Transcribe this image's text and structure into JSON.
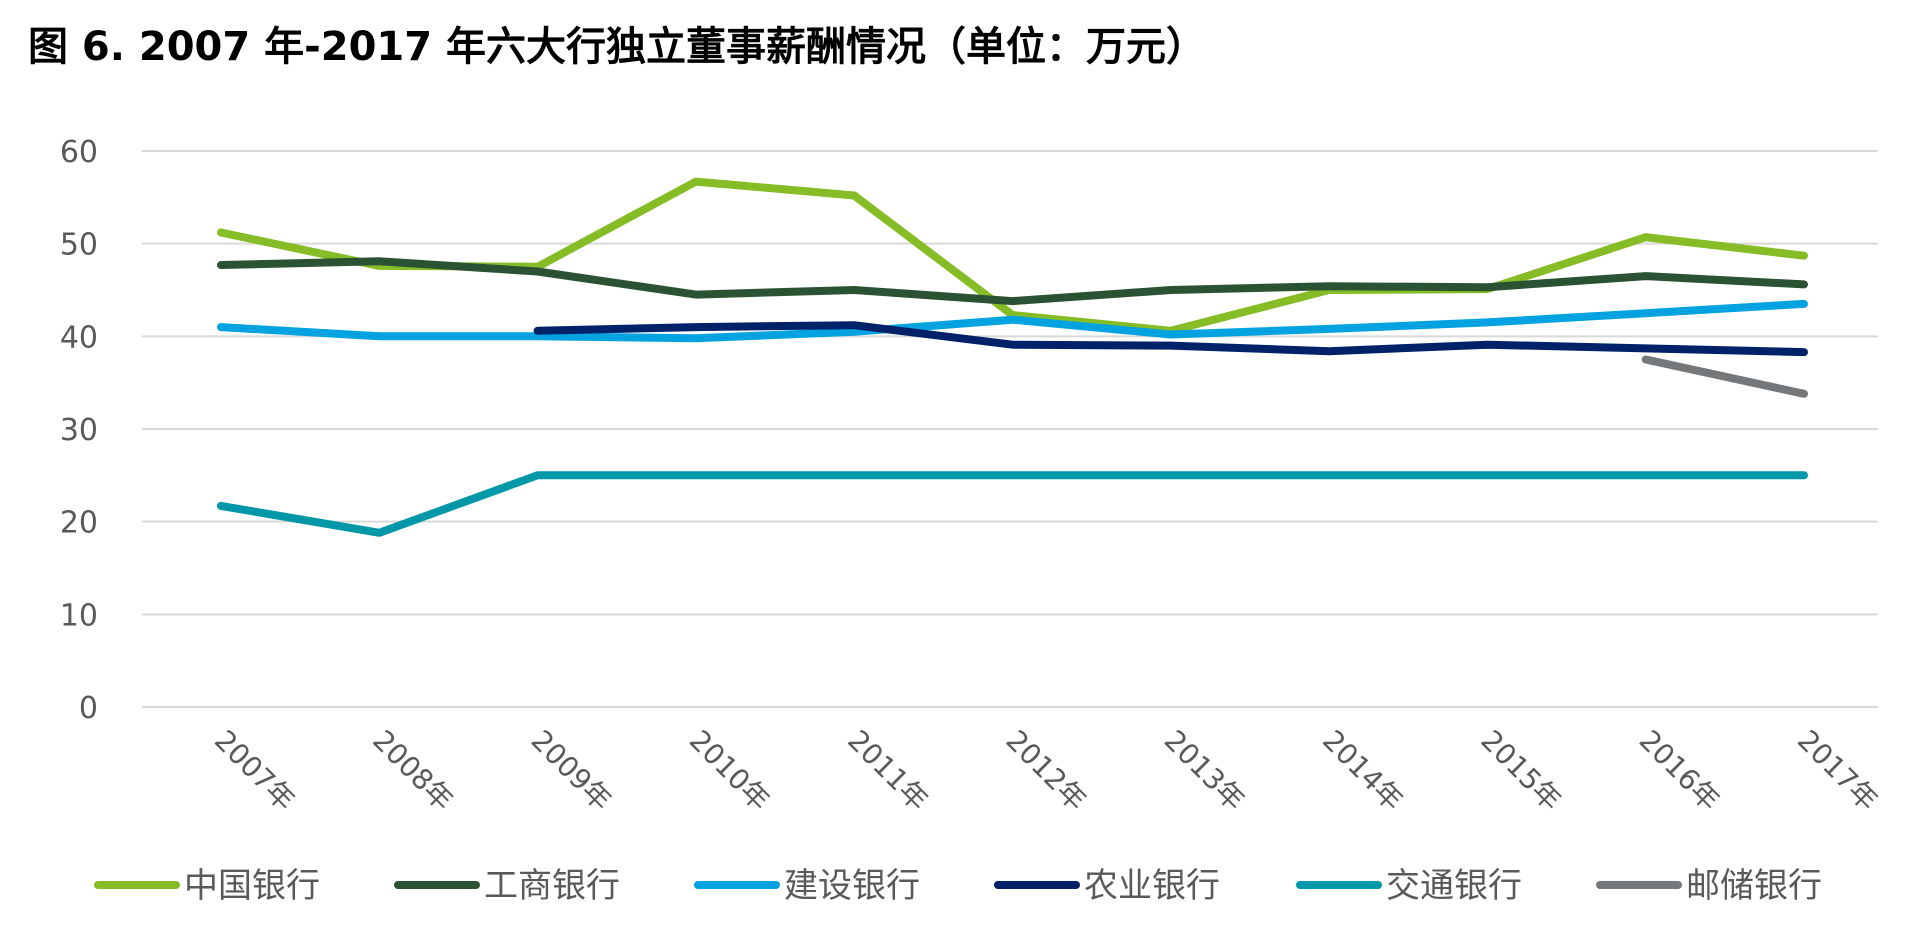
{
  "page": {
    "title": "图 6. 2007 年-2017 年六大行独立董事薪酬情况（单位：万元）"
  },
  "chart_data": {
    "type": "line",
    "title": "图 6. 2007 年-2017 年六大行独立董事薪酬情况（单位：万元）",
    "xlabel": "",
    "ylabel": "",
    "categories": [
      "2007年",
      "2008年",
      "2009年",
      "2010年",
      "2011年",
      "2012年",
      "2013年",
      "2014年",
      "2015年",
      "2016年",
      "2017年"
    ],
    "ylim": [
      0,
      60
    ],
    "yticks": [
      0,
      10,
      20,
      30,
      40,
      50,
      60
    ],
    "grid": "horizontal",
    "legend_position": "bottom",
    "series": [
      {
        "name": "中国银行",
        "color": "#86BC25",
        "values": [
          51.2,
          47.6,
          47.5,
          56.7,
          55.2,
          42.3,
          40.6,
          45.0,
          45.1,
          50.7,
          48.7
        ]
      },
      {
        "name": "工商银行",
        "color": "#2C5234",
        "values": [
          47.7,
          48.1,
          47.0,
          44.5,
          45.0,
          43.8,
          45.0,
          45.4,
          45.3,
          46.5,
          45.6
        ]
      },
      {
        "name": "建设银行",
        "color": "#00A3E0",
        "values": [
          41.0,
          40.0,
          40.0,
          39.8,
          40.5,
          41.8,
          40.2,
          40.8,
          41.5,
          42.5,
          43.5
        ]
      },
      {
        "name": "农业银行",
        "color": "#012169",
        "values": [
          null,
          null,
          40.6,
          41.0,
          41.2,
          39.1,
          39.0,
          38.4,
          39.1,
          38.7,
          38.3
        ]
      },
      {
        "name": "交通银行",
        "color": "#0097A9",
        "values": [
          21.7,
          18.8,
          25.0,
          25.0,
          25.0,
          25.0,
          25.0,
          25.0,
          25.0,
          25.0,
          25.0
        ]
      },
      {
        "name": "邮储银行",
        "color": "#75787B",
        "values": [
          null,
          null,
          null,
          null,
          null,
          null,
          null,
          null,
          null,
          37.5,
          33.8
        ]
      }
    ]
  }
}
